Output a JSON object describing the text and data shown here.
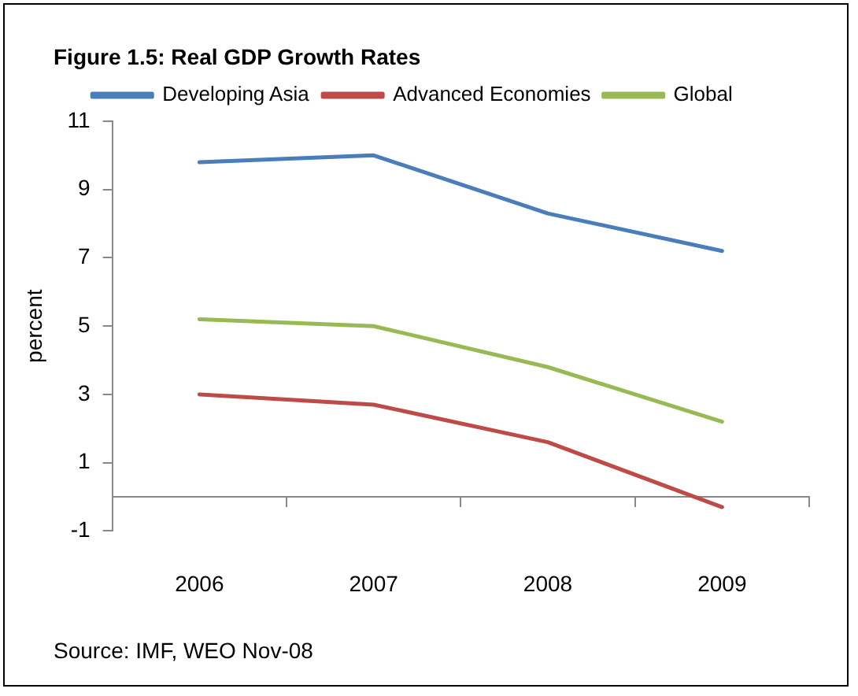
{
  "chart_data": {
    "type": "line",
    "title": "Figure 1.5: Real GDP Growth Rates",
    "ylabel": "percent",
    "categories": [
      "2006",
      "2007",
      "2008",
      "2009"
    ],
    "series": [
      {
        "name": "Developing Asia",
        "color": "#4a7ebb",
        "values": [
          9.8,
          10.0,
          8.3,
          7.2
        ]
      },
      {
        "name": "Advanced Economies",
        "color": "#be4b48",
        "values": [
          3.0,
          2.7,
          1.6,
          -0.3
        ]
      },
      {
        "name": "Global",
        "color": "#98b954",
        "values": [
          5.2,
          5.0,
          3.8,
          2.2
        ]
      }
    ],
    "ylim": [
      -1,
      11
    ],
    "yticks": [
      -1,
      1,
      3,
      5,
      7,
      9,
      11
    ],
    "grid": false,
    "legend": "top",
    "marker": "none",
    "line_style": "solid",
    "annotations": [
      "Source: IMF, WEO Nov-08"
    ]
  }
}
